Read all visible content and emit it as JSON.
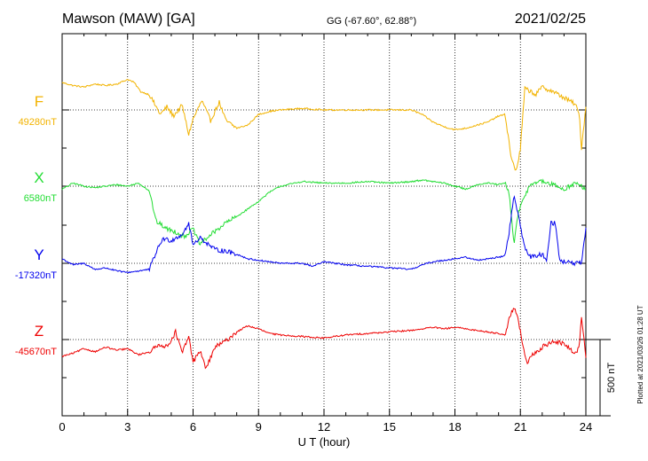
{
  "header": {
    "station": "Mawson (MAW)  [GA]",
    "coords": "GG (-67.60°,  62.88°)",
    "date": "2021/02/25"
  },
  "footer": {
    "plotted": "Plotted at 2021/03/26 01:28 UT",
    "scale_label": "500 nT"
  },
  "chart_data": {
    "type": "line",
    "xlabel": "U T (hour)",
    "xlim": [
      0,
      24
    ],
    "x_ticks": [
      "0",
      "3",
      "6",
      "9",
      "12",
      "15",
      "18",
      "21",
      "24"
    ],
    "scale_nT": 500,
    "grid": true,
    "series": [
      {
        "name": "F",
        "baseline_label": "49280nT",
        "color": "#f2b300",
        "baseline": 49280,
        "points": [
          [
            0,
            49460
          ],
          [
            0.5,
            49440
          ],
          [
            1.0,
            49430
          ],
          [
            1.5,
            49450
          ],
          [
            2.0,
            49440
          ],
          [
            2.5,
            49450
          ],
          [
            3.0,
            49480
          ],
          [
            3.3,
            49460
          ],
          [
            3.6,
            49400
          ],
          [
            4.0,
            49380
          ],
          [
            4.5,
            49250
          ],
          [
            4.8,
            49300
          ],
          [
            5.1,
            49240
          ],
          [
            5.5,
            49310
          ],
          [
            5.8,
            49120
          ],
          [
            6.0,
            49220
          ],
          [
            6.4,
            49340
          ],
          [
            6.8,
            49210
          ],
          [
            7.2,
            49330
          ],
          [
            7.5,
            49210
          ],
          [
            8.0,
            49160
          ],
          [
            8.5,
            49180
          ],
          [
            9.0,
            49250
          ],
          [
            9.5,
            49270
          ],
          [
            10.0,
            49280
          ],
          [
            11.0,
            49290
          ],
          [
            12.0,
            49280
          ],
          [
            13.0,
            49280
          ],
          [
            14.0,
            49280
          ],
          [
            15.0,
            49280
          ],
          [
            16.0,
            49280
          ],
          [
            16.5,
            49250
          ],
          [
            17.0,
            49200
          ],
          [
            17.5,
            49170
          ],
          [
            18.0,
            49150
          ],
          [
            18.5,
            49160
          ],
          [
            19.0,
            49180
          ],
          [
            19.5,
            49200
          ],
          [
            20.0,
            49240
          ],
          [
            20.3,
            49250
          ],
          [
            20.6,
            48950
          ],
          [
            20.8,
            48880
          ],
          [
            21.0,
            49020
          ],
          [
            21.2,
            49420
          ],
          [
            21.5,
            49400
          ],
          [
            21.7,
            49380
          ],
          [
            22.0,
            49430
          ],
          [
            22.5,
            49400
          ],
          [
            23.0,
            49360
          ],
          [
            23.5,
            49320
          ],
          [
            23.7,
            49250
          ],
          [
            23.8,
            49030
          ],
          [
            24.0,
            49300
          ]
        ]
      },
      {
        "name": "X",
        "baseline_label": "6580nT",
        "color": "#22dd33",
        "baseline": 6580,
        "points": [
          [
            0,
            6560
          ],
          [
            0.5,
            6600
          ],
          [
            1.0,
            6580
          ],
          [
            1.5,
            6570
          ],
          [
            2.0,
            6580
          ],
          [
            2.5,
            6590
          ],
          [
            3.0,
            6580
          ],
          [
            3.5,
            6600
          ],
          [
            4.0,
            6550
          ],
          [
            4.3,
            6350
          ],
          [
            4.8,
            6300
          ],
          [
            5.2,
            6280
          ],
          [
            5.6,
            6250
          ],
          [
            6.0,
            6300
          ],
          [
            6.3,
            6200
          ],
          [
            6.8,
            6260
          ],
          [
            7.5,
            6340
          ],
          [
            8.0,
            6380
          ],
          [
            8.5,
            6430
          ],
          [
            9.0,
            6480
          ],
          [
            9.5,
            6540
          ],
          [
            10.0,
            6580
          ],
          [
            11.0,
            6610
          ],
          [
            12.0,
            6600
          ],
          [
            13.0,
            6600
          ],
          [
            14.0,
            6610
          ],
          [
            15.0,
            6600
          ],
          [
            16.0,
            6610
          ],
          [
            16.5,
            6620
          ],
          [
            17.0,
            6610
          ],
          [
            17.5,
            6600
          ],
          [
            18.0,
            6580
          ],
          [
            18.5,
            6560
          ],
          [
            19.0,
            6590
          ],
          [
            19.5,
            6600
          ],
          [
            20.0,
            6590
          ],
          [
            20.3,
            6600
          ],
          [
            20.5,
            6520
          ],
          [
            20.7,
            6200
          ],
          [
            20.9,
            6400
          ],
          [
            21.2,
            6520
          ],
          [
            21.5,
            6600
          ],
          [
            22.0,
            6610
          ],
          [
            22.5,
            6590
          ],
          [
            23.0,
            6560
          ],
          [
            23.5,
            6600
          ],
          [
            23.8,
            6580
          ],
          [
            24.0,
            6550
          ]
        ]
      },
      {
        "name": "Y",
        "baseline_label": "-17320nT",
        "color": "#0000ee",
        "baseline": -17320,
        "points": [
          [
            0,
            -17290
          ],
          [
            0.5,
            -17330
          ],
          [
            1.0,
            -17320
          ],
          [
            1.5,
            -17360
          ],
          [
            2.0,
            -17350
          ],
          [
            2.5,
            -17370
          ],
          [
            3.0,
            -17380
          ],
          [
            3.5,
            -17370
          ],
          [
            4.0,
            -17360
          ],
          [
            4.3,
            -17250
          ],
          [
            4.6,
            -17160
          ],
          [
            5.0,
            -17170
          ],
          [
            5.5,
            -17130
          ],
          [
            5.8,
            -17060
          ],
          [
            6.0,
            -17200
          ],
          [
            6.3,
            -17150
          ],
          [
            7.0,
            -17230
          ],
          [
            7.5,
            -17240
          ],
          [
            8.0,
            -17260
          ],
          [
            8.5,
            -17290
          ],
          [
            9.0,
            -17300
          ],
          [
            9.5,
            -17310
          ],
          [
            10.0,
            -17320
          ],
          [
            11.0,
            -17320
          ],
          [
            11.5,
            -17340
          ],
          [
            12.0,
            -17310
          ],
          [
            13.0,
            -17330
          ],
          [
            14.0,
            -17340
          ],
          [
            15.0,
            -17350
          ],
          [
            16.0,
            -17360
          ],
          [
            16.5,
            -17330
          ],
          [
            17.0,
            -17310
          ],
          [
            17.5,
            -17300
          ],
          [
            18.0,
            -17290
          ],
          [
            18.5,
            -17280
          ],
          [
            19.0,
            -17300
          ],
          [
            19.5,
            -17290
          ],
          [
            20.0,
            -17280
          ],
          [
            20.3,
            -17270
          ],
          [
            20.5,
            -17100
          ],
          [
            20.7,
            -16880
          ],
          [
            20.9,
            -17000
          ],
          [
            21.2,
            -17220
          ],
          [
            21.5,
            -17280
          ],
          [
            22.0,
            -17260
          ],
          [
            22.2,
            -17300
          ],
          [
            22.4,
            -17050
          ],
          [
            22.6,
            -17060
          ],
          [
            22.8,
            -17300
          ],
          [
            23.0,
            -17310
          ],
          [
            23.5,
            -17320
          ],
          [
            23.8,
            -17320
          ],
          [
            24.0,
            -17100
          ]
        ]
      },
      {
        "name": "Z",
        "baseline_label": "-45670nT",
        "color": "#ee0000",
        "baseline": -45670,
        "points": [
          [
            0,
            -45780
          ],
          [
            0.5,
            -45760
          ],
          [
            1.0,
            -45730
          ],
          [
            1.5,
            -45750
          ],
          [
            2.0,
            -45720
          ],
          [
            2.5,
            -45740
          ],
          [
            3.0,
            -45730
          ],
          [
            3.5,
            -45770
          ],
          [
            4.0,
            -45750
          ],
          [
            4.5,
            -45700
          ],
          [
            4.8,
            -45720
          ],
          [
            5.2,
            -45620
          ],
          [
            5.5,
            -45760
          ],
          [
            5.8,
            -45650
          ],
          [
            6.0,
            -45820
          ],
          [
            6.3,
            -45740
          ],
          [
            6.6,
            -45860
          ],
          [
            7.0,
            -45720
          ],
          [
            7.5,
            -45680
          ],
          [
            8.0,
            -45620
          ],
          [
            8.5,
            -45580
          ],
          [
            9.0,
            -45600
          ],
          [
            9.5,
            -45630
          ],
          [
            10.0,
            -45640
          ],
          [
            11.0,
            -45650
          ],
          [
            12.0,
            -45660
          ],
          [
            13.0,
            -45640
          ],
          [
            14.0,
            -45630
          ],
          [
            15.0,
            -45620
          ],
          [
            16.0,
            -45610
          ],
          [
            17.0,
            -45590
          ],
          [
            17.5,
            -45600
          ],
          [
            18.0,
            -45590
          ],
          [
            18.5,
            -45600
          ],
          [
            19.0,
            -45610
          ],
          [
            19.5,
            -45620
          ],
          [
            20.0,
            -45630
          ],
          [
            20.3,
            -45640
          ],
          [
            20.5,
            -45520
          ],
          [
            20.7,
            -45460
          ],
          [
            20.9,
            -45540
          ],
          [
            21.1,
            -45700
          ],
          [
            21.3,
            -45830
          ],
          [
            21.5,
            -45780
          ],
          [
            22.0,
            -45720
          ],
          [
            22.5,
            -45680
          ],
          [
            23.0,
            -45700
          ],
          [
            23.5,
            -45760
          ],
          [
            23.7,
            -45720
          ],
          [
            23.8,
            -45520
          ],
          [
            24.0,
            -45780
          ]
        ]
      }
    ]
  }
}
